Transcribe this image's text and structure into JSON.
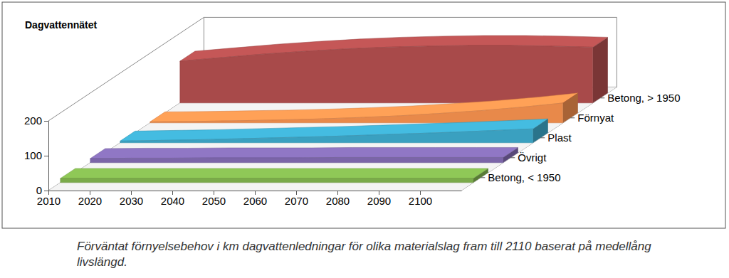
{
  "chart_data": {
    "type": "area",
    "title": "Dagvattennätet",
    "caption": "Förväntat förnyelsebehov i km dagvattenledningar för olika materialslag fram till 2110 baserat på medellång livslängd.",
    "x": [
      2010,
      2020,
      2030,
      2040,
      2050,
      2060,
      2070,
      2080,
      2090,
      2100,
      2110
    ],
    "xlim": [
      2010,
      2110
    ],
    "xticks": [
      2010,
      2020,
      2030,
      2040,
      2050,
      2060,
      2070,
      2080,
      2090,
      2100
    ],
    "ylim": [
      0,
      200
    ],
    "yticks": [
      0,
      100,
      200
    ],
    "series": [
      {
        "name": "Betong, < 1950",
        "color": "#7aaa4a",
        "values": [
          12,
          12,
          12,
          12,
          12,
          12,
          12,
          12,
          12,
          12,
          12
        ]
      },
      {
        "name": "Övrigt",
        "color": "#7b65a8",
        "values": [
          12,
          13,
          13,
          14,
          14,
          14,
          15,
          15,
          15,
          15,
          15
        ]
      },
      {
        "name": "Plast",
        "color": "#3aa0c0",
        "values": [
          5,
          7,
          9,
          12,
          15,
          18,
          22,
          26,
          30,
          35,
          40
        ]
      },
      {
        "name": "Förnyat",
        "color": "#e8894a",
        "values": [
          3,
          4,
          6,
          8,
          11,
          15,
          20,
          27,
          35,
          45,
          57
        ]
      },
      {
        "name": "Betong, > 1950",
        "color": "#a84a4a",
        "values": [
          120,
          130,
          140,
          148,
          155,
          160,
          163,
          165,
          165,
          163,
          160
        ]
      }
    ]
  }
}
